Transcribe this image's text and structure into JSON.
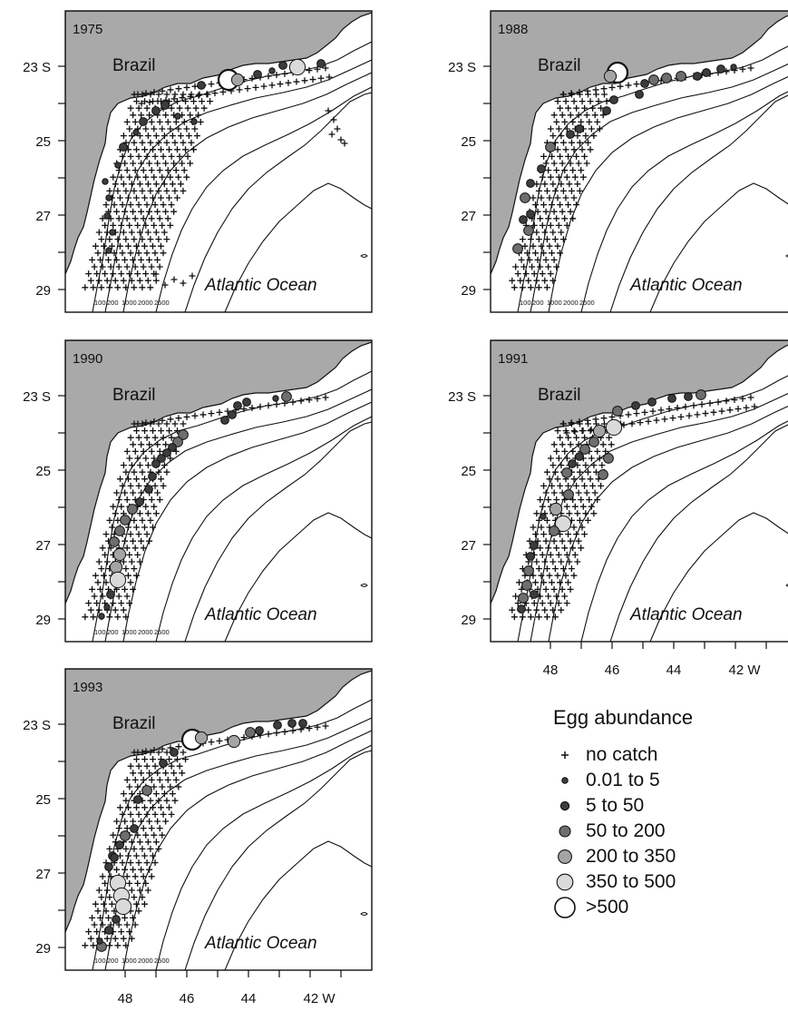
{
  "panels": [
    {
      "year": "1975",
      "country": "Brazil",
      "ocean": "Atlantic Ocean",
      "isobaths": [
        "100",
        "200",
        "1000",
        "2000",
        "2500"
      ],
      "lat_labels": [
        "23 S",
        "25",
        "27",
        "29"
      ]
    },
    {
      "year": "1988",
      "country": "Brazil",
      "ocean": "Atlantic Ocean",
      "isobaths": [
        "100",
        "200",
        "1000",
        "2000",
        "2500"
      ],
      "lat_labels": [
        "23 S",
        "25",
        "27",
        "29"
      ]
    },
    {
      "year": "1990",
      "country": "Brazil",
      "ocean": "Atlantic Ocean",
      "isobaths": [
        "100",
        "200",
        "1000",
        "2000",
        "2500"
      ],
      "lat_labels": [
        "23 S",
        "25",
        "27",
        "29"
      ]
    },
    {
      "year": "1991",
      "country": "Brazil",
      "ocean": "Atlantic Ocean",
      "isobaths": [],
      "lat_labels": [
        "23 S",
        "25",
        "27",
        "29"
      ],
      "lon_labels": [
        "48",
        "46",
        "44",
        "42 W"
      ]
    },
    {
      "year": "1993",
      "country": "Brazil",
      "ocean": "Atlantic Ocean",
      "isobaths": [
        "100",
        "200",
        "1000",
        "2000",
        "2500"
      ],
      "lat_labels": [
        "23 S",
        "25",
        "27",
        "29"
      ],
      "lon_labels": [
        "48",
        "46",
        "44",
        "42 W"
      ]
    }
  ],
  "legend": {
    "title": "Egg abundance",
    "items": [
      {
        "label": "no catch",
        "symbol": "plus"
      },
      {
        "label": "0.01 to 5",
        "symbol": "dot-xs"
      },
      {
        "label": "5 to 50",
        "symbol": "dot-s"
      },
      {
        "label": "50 to 200",
        "symbol": "dot-m"
      },
      {
        "label": "200 to 350",
        "symbol": "dot-l"
      },
      {
        "label": "350 to 500",
        "symbol": "dot-xl"
      },
      {
        "label": ">500",
        "symbol": "dot-xxl"
      }
    ]
  },
  "colors": {
    "land": "#a9a9a9",
    "dark_fill": "#3c3c3c",
    "mid_fill": "#6e6e6e",
    "light_fill": "#a4a4a4",
    "pale_fill": "#dadada",
    "open_fill": "#ffffff"
  }
}
